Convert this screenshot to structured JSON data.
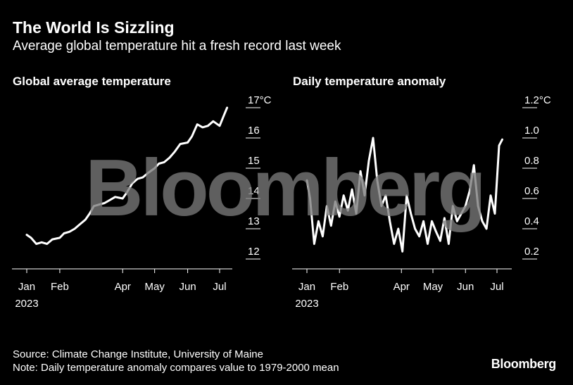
{
  "header": {
    "title": "The World Is Sizzling",
    "subtitle": "Average global temperature hit a fresh record last week"
  },
  "watermark": "Bloomberg",
  "footer": {
    "source": "Source: Climate Change Institute, University of Maine",
    "note": "Note: Daily temperature anomaly compares value to 1979-2000 mean",
    "brand": "Bloomberg"
  },
  "colors": {
    "background": "#000000",
    "line": "#ffffff",
    "watermark": "#7a7a7a"
  },
  "chart_data": [
    {
      "type": "line",
      "title": "Global average temperature",
      "unit": "°C",
      "x_ticks": [
        {
          "date": "2023-01-01",
          "label": "Jan",
          "sublabel": "2023"
        },
        {
          "date": "2023-02-01",
          "label": "Feb"
        },
        {
          "date": "2023-04-01",
          "label": "Apr"
        },
        {
          "date": "2023-05-01",
          "label": "May"
        },
        {
          "date": "2023-06-01",
          "label": "Jun"
        },
        {
          "date": "2023-07-01",
          "label": "Jul"
        }
      ],
      "y_ticks": [
        {
          "value": 17,
          "label": "17°C"
        },
        {
          "value": 16,
          "label": "16"
        },
        {
          "value": 15,
          "label": "15"
        },
        {
          "value": 14,
          "label": "14"
        },
        {
          "value": 13,
          "label": "13"
        },
        {
          "value": 12,
          "label": "12"
        }
      ],
      "ylim": [
        12,
        17
      ],
      "xlim": [
        "2023-01-01",
        "2023-07-31"
      ],
      "grid": false,
      "series": [
        {
          "x": [
            "2023-01-01",
            "2023-01-05",
            "2023-01-10",
            "2023-01-15",
            "2023-01-20",
            "2023-01-25",
            "2023-02-01",
            "2023-02-05",
            "2023-02-10",
            "2023-02-15",
            "2023-02-20",
            "2023-02-25",
            "2023-03-01",
            "2023-03-05",
            "2023-03-10",
            "2023-03-15",
            "2023-03-20",
            "2023-03-25",
            "2023-04-01",
            "2023-04-05",
            "2023-04-10",
            "2023-04-15",
            "2023-04-20",
            "2023-04-25",
            "2023-05-01",
            "2023-05-05",
            "2023-05-10",
            "2023-05-15",
            "2023-05-20",
            "2023-05-25",
            "2023-06-01",
            "2023-06-05",
            "2023-06-10",
            "2023-06-15",
            "2023-06-20",
            "2023-06-25",
            "2023-07-01",
            "2023-07-05",
            "2023-07-08"
          ],
          "y": [
            12.8,
            12.7,
            12.5,
            12.55,
            12.5,
            12.65,
            12.7,
            12.85,
            12.9,
            13.0,
            13.15,
            13.3,
            13.5,
            13.75,
            13.8,
            13.85,
            13.95,
            14.05,
            14.0,
            14.2,
            14.5,
            14.65,
            14.7,
            14.85,
            15.0,
            15.15,
            15.2,
            15.35,
            15.55,
            15.8,
            15.85,
            16.05,
            16.45,
            16.35,
            16.4,
            16.55,
            16.4,
            16.75,
            17.0
          ]
        }
      ]
    },
    {
      "type": "line",
      "title": "Daily temperature anomaly",
      "unit": "°C",
      "x_ticks": [
        {
          "date": "2023-01-01",
          "label": "Jan",
          "sublabel": "2023"
        },
        {
          "date": "2023-02-01",
          "label": "Feb"
        },
        {
          "date": "2023-04-01",
          "label": "Apr"
        },
        {
          "date": "2023-05-01",
          "label": "May"
        },
        {
          "date": "2023-06-01",
          "label": "Jun"
        },
        {
          "date": "2023-07-01",
          "label": "Jul"
        }
      ],
      "y_ticks": [
        {
          "value": 1.2,
          "label": "1.2°C"
        },
        {
          "value": 1.0,
          "label": "1.0"
        },
        {
          "value": 0.8,
          "label": "0.8"
        },
        {
          "value": 0.6,
          "label": "0.6"
        },
        {
          "value": 0.4,
          "label": "0.4"
        },
        {
          "value": 0.2,
          "label": "0.2"
        }
      ],
      "ylim": [
        0.2,
        1.2
      ],
      "xlim": [
        "2023-01-01",
        "2023-07-31"
      ],
      "grid": false,
      "series": [
        {
          "x": [
            "2023-01-01",
            "2023-01-04",
            "2023-01-08",
            "2023-01-12",
            "2023-01-16",
            "2023-01-20",
            "2023-01-24",
            "2023-01-28",
            "2023-02-01",
            "2023-02-05",
            "2023-02-09",
            "2023-02-13",
            "2023-02-17",
            "2023-02-21",
            "2023-02-25",
            "2023-03-01",
            "2023-03-05",
            "2023-03-09",
            "2023-03-13",
            "2023-03-17",
            "2023-03-21",
            "2023-03-25",
            "2023-03-29",
            "2023-04-02",
            "2023-04-06",
            "2023-04-10",
            "2023-04-14",
            "2023-04-18",
            "2023-04-22",
            "2023-04-26",
            "2023-04-30",
            "2023-05-04",
            "2023-05-08",
            "2023-05-12",
            "2023-05-16",
            "2023-05-20",
            "2023-05-24",
            "2023-05-28",
            "2023-06-01",
            "2023-06-05",
            "2023-06-09",
            "2023-06-13",
            "2023-06-17",
            "2023-06-21",
            "2023-06-25",
            "2023-06-29",
            "2023-07-03",
            "2023-07-06"
          ],
          "y": [
            0.72,
            0.6,
            0.3,
            0.45,
            0.35,
            0.55,
            0.42,
            0.58,
            0.48,
            0.62,
            0.52,
            0.66,
            0.5,
            0.78,
            0.62,
            0.85,
            1.0,
            0.72,
            0.55,
            0.62,
            0.45,
            0.3,
            0.4,
            0.25,
            0.62,
            0.5,
            0.4,
            0.35,
            0.45,
            0.3,
            0.45,
            0.38,
            0.32,
            0.47,
            0.3,
            0.55,
            0.45,
            0.5,
            0.55,
            0.65,
            0.82,
            0.55,
            0.45,
            0.4,
            0.62,
            0.5,
            0.95,
            0.99
          ]
        }
      ]
    }
  ]
}
